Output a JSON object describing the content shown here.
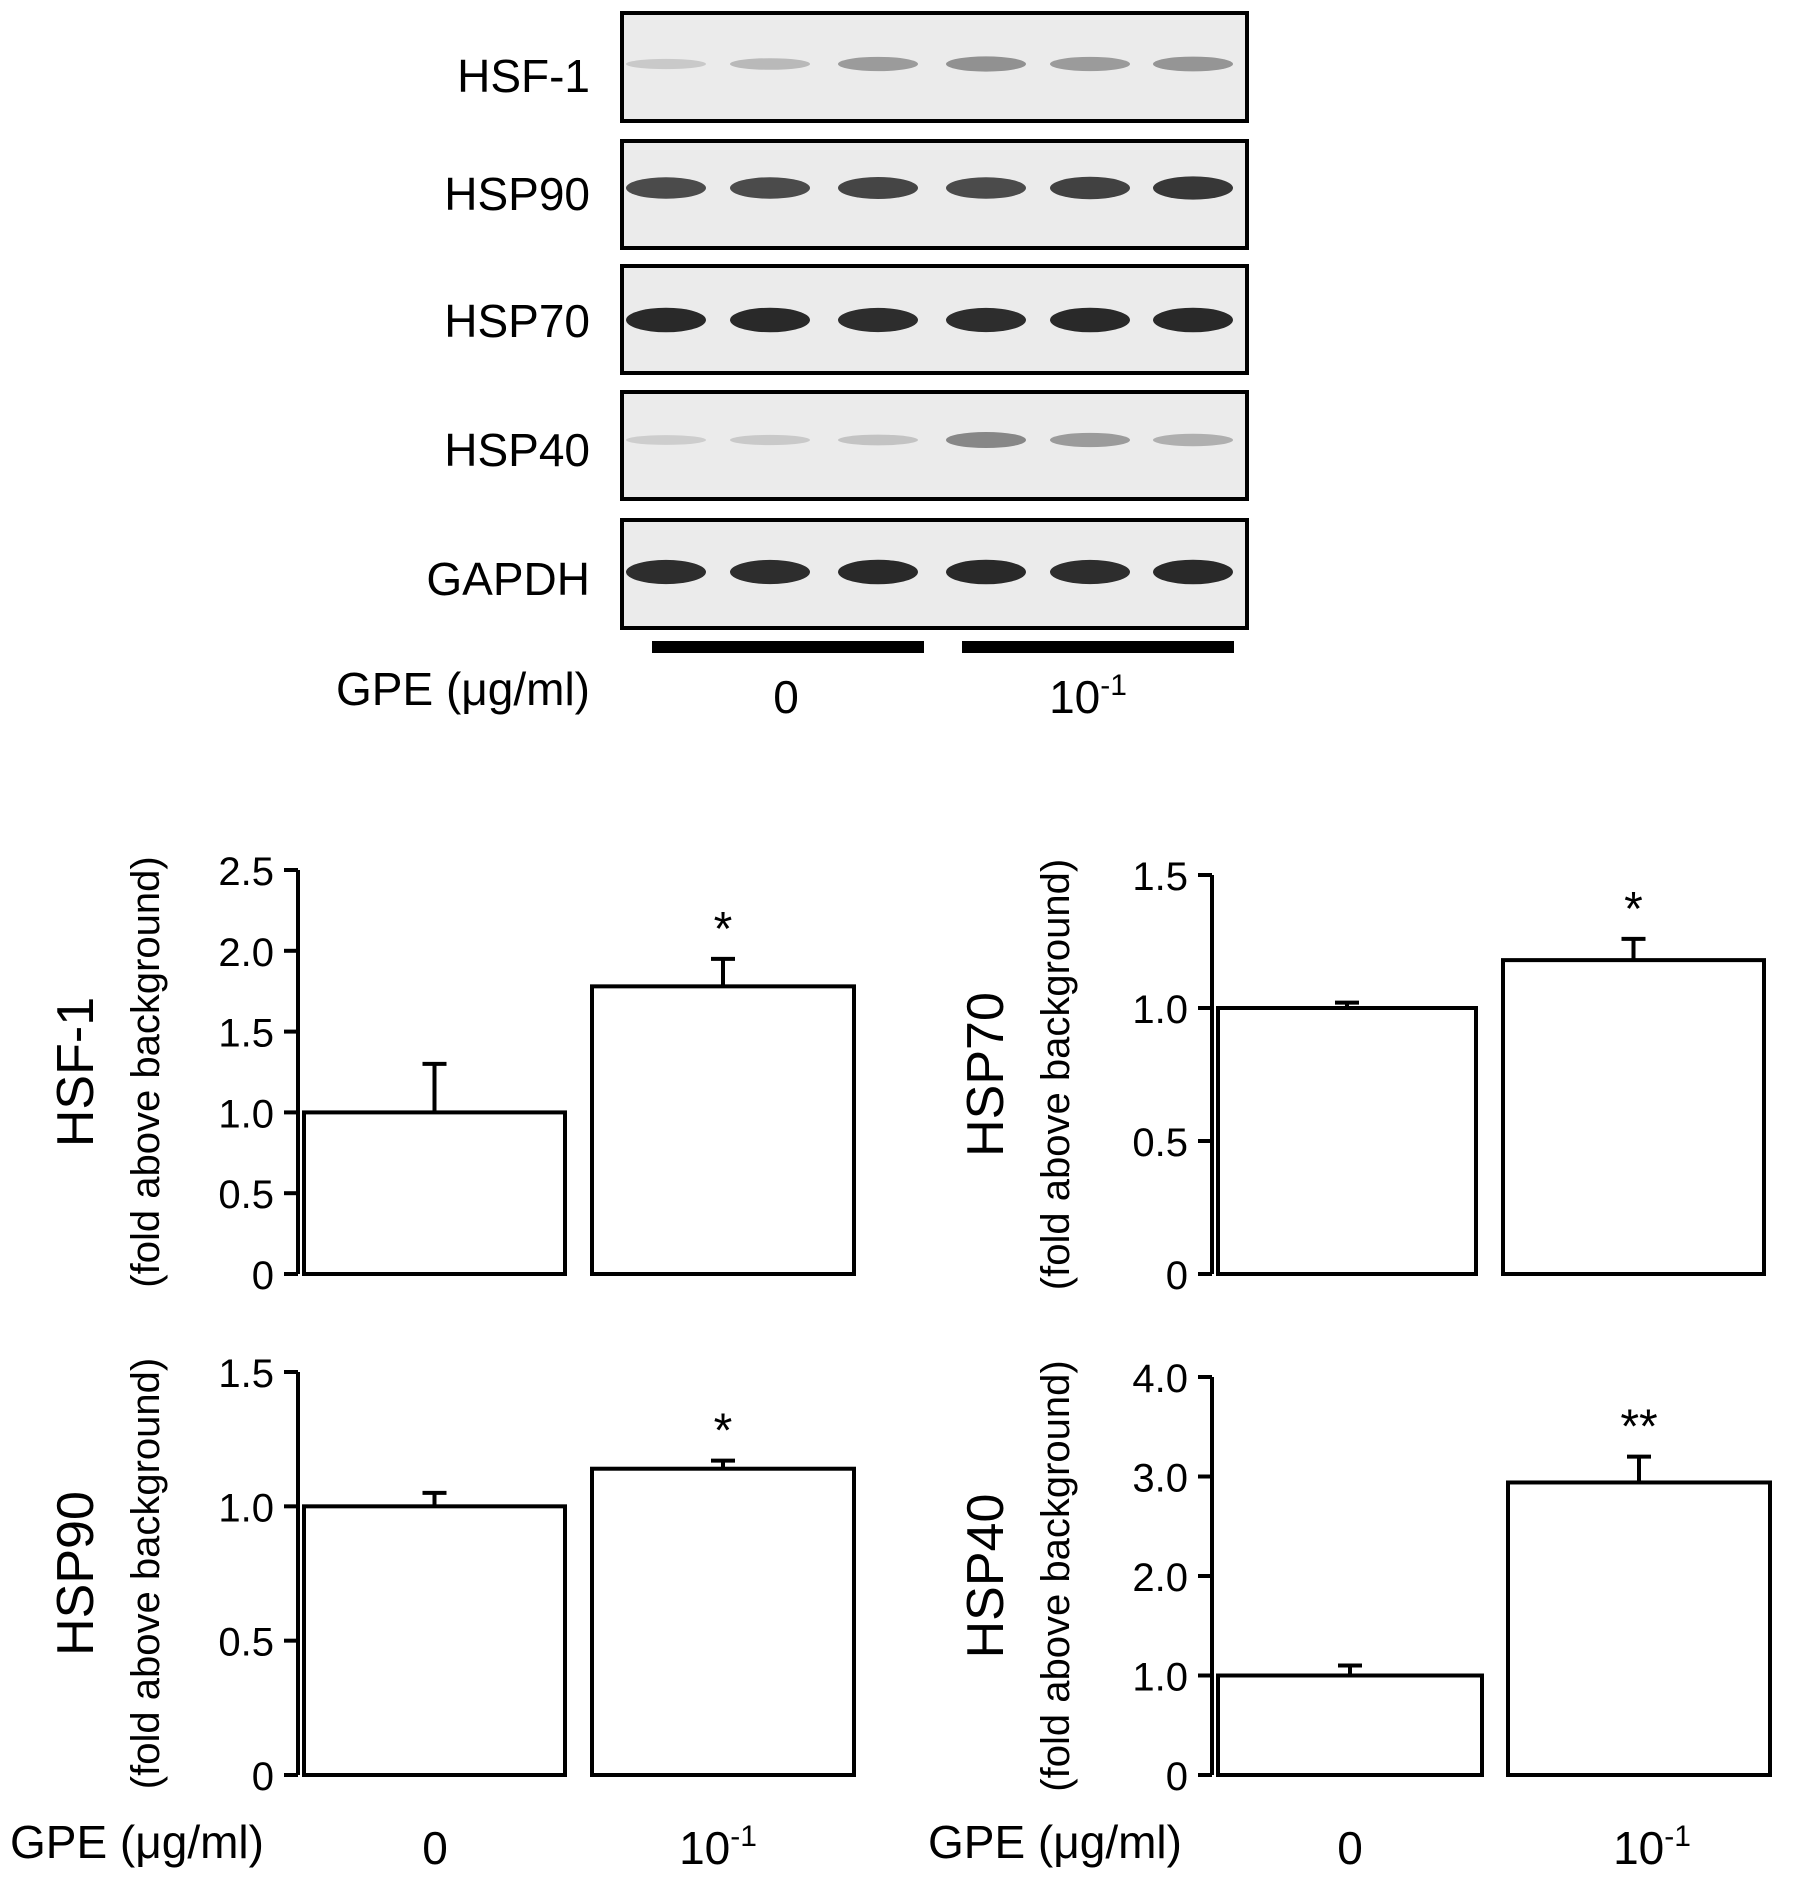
{
  "blot": {
    "rows": [
      {
        "label": "HSF-1",
        "intensity": [
          0.12,
          0.2,
          0.35,
          0.4,
          0.35,
          0.38
        ]
      },
      {
        "label": "HSP90",
        "intensity": [
          0.75,
          0.75,
          0.78,
          0.75,
          0.8,
          0.85
        ]
      },
      {
        "label": "HSP70",
        "intensity": [
          0.92,
          0.92,
          0.9,
          0.9,
          0.92,
          0.92
        ]
      },
      {
        "label": "HSP40",
        "intensity": [
          0.1,
          0.12,
          0.15,
          0.45,
          0.35,
          0.25
        ]
      },
      {
        "label": "GAPDH",
        "intensity": [
          0.9,
          0.9,
          0.92,
          0.92,
          0.9,
          0.92
        ]
      }
    ],
    "treatment_label": "GPE (μg/ml)",
    "groups": [
      {
        "label_base": "0",
        "label_exp": ""
      },
      {
        "label_base": "10",
        "label_exp": "-1"
      }
    ]
  },
  "x_axis": {
    "label": "GPE (μg/ml)",
    "categories": [
      {
        "base": "0",
        "exp": ""
      },
      {
        "base": "10",
        "exp": "-1"
      }
    ]
  },
  "chart_data": [
    {
      "type": "bar",
      "ylabel": "HSF-1",
      "ylabel_sub": "(fold above background)",
      "categories": [
        "0",
        "10^-1"
      ],
      "values": [
        1.0,
        1.78
      ],
      "errors": [
        0.3,
        0.17
      ],
      "significance": [
        "",
        "*"
      ],
      "ylim": [
        0,
        2.5
      ],
      "yticks": [
        "0",
        "0.5",
        "1.0",
        "1.5",
        "2.0",
        "2.5"
      ]
    },
    {
      "type": "bar",
      "ylabel": "HSP70",
      "ylabel_sub": "(fold above background)",
      "categories": [
        "0",
        "10^-1"
      ],
      "values": [
        1.0,
        1.18
      ],
      "errors": [
        0.02,
        0.08
      ],
      "significance": [
        "",
        "*"
      ],
      "ylim": [
        0,
        1.5
      ],
      "yticks": [
        "0",
        "0.5",
        "1.0",
        "1.5"
      ]
    },
    {
      "type": "bar",
      "ylabel": "HSP90",
      "ylabel_sub": "(fold above background)",
      "categories": [
        "0",
        "10^-1"
      ],
      "values": [
        1.0,
        1.14
      ],
      "errors": [
        0.05,
        0.03
      ],
      "significance": [
        "",
        "*"
      ],
      "ylim": [
        0,
        1.5
      ],
      "yticks": [
        "0",
        "0.5",
        "1.0",
        "1.5"
      ]
    },
    {
      "type": "bar",
      "ylabel": "HSP40",
      "ylabel_sub": "(fold above background)",
      "categories": [
        "0",
        "10^-1"
      ],
      "values": [
        1.0,
        2.94
      ],
      "errors": [
        0.1,
        0.26
      ],
      "significance": [
        "",
        "**"
      ],
      "ylim": [
        0,
        4.0
      ],
      "yticks": [
        "0",
        "1.0",
        "2.0",
        "3.0",
        "4.0"
      ]
    }
  ]
}
